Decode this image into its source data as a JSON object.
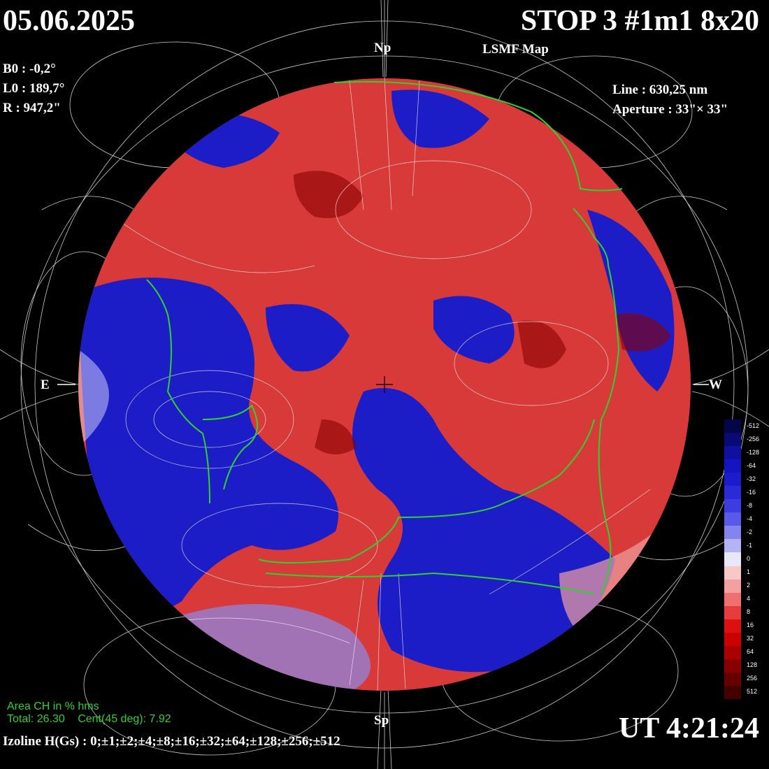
{
  "header": {
    "date": "05.06.2025",
    "title": "STOP 3 #1m1 8x20",
    "subtitle": "LSMF  Map"
  },
  "params": {
    "b0": "B0 : -0,2°",
    "l0": "L0 : 189,7°",
    "r": "R  : 947,2\"",
    "line": "Line :  630,25 nm",
    "aperture": "Aperture : 33\"× 33\""
  },
  "compass": {
    "north": "Np",
    "south": "Sp",
    "east": "E",
    "west": "W"
  },
  "ut": "UT 4:21:24",
  "izoline": "Izoline H(Gs) : 0;±1;±2;±4;±8;±16;±32;±64;±128;±256;±512",
  "coronal_holes": {
    "title": "Area CH in % hms",
    "total": "Total: 26.30",
    "center": "Cent(45 deg): 7.92"
  },
  "colorbar": {
    "labels": [
      "-512",
      "-256",
      "-128",
      "-64",
      "-32",
      "-16",
      "-8",
      "-4",
      "-2",
      "-1",
      "0",
      "1",
      "2",
      "4",
      "8",
      "16",
      "32",
      "64",
      "128",
      "256",
      "512"
    ],
    "colors": [
      "#05054a",
      "#0a0a75",
      "#0f0fa0",
      "#1414c0",
      "#1c1ccc",
      "#2a2ad6",
      "#3c3ce0",
      "#5a5ae8",
      "#8484ee",
      "#b4b4f4",
      "#e8e8f8",
      "#f8c8c8",
      "#f4a0a0",
      "#ee7070",
      "#e63c3c",
      "#dc1010",
      "#c80000",
      "#aa0000",
      "#880000",
      "#660000",
      "#440000"
    ]
  },
  "colors": {
    "positive": "#dc1010",
    "negative": "#1414c0",
    "ch_contour": "#2fd12f"
  }
}
